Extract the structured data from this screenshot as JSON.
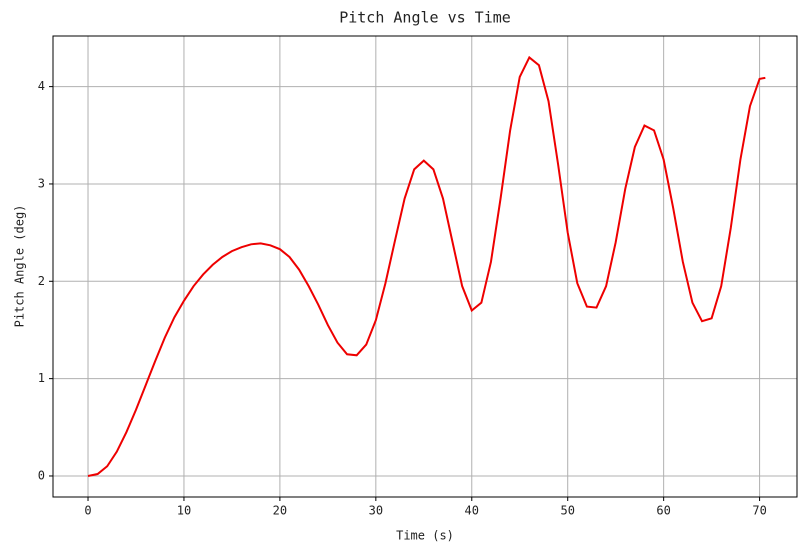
{
  "chart_data": {
    "type": "line",
    "title": "Pitch Angle vs Time",
    "xlabel": "Time (s)",
    "ylabel": "Pitch Angle (deg)",
    "grid": true,
    "xlim": [
      -3.65,
      73.9
    ],
    "ylim": [
      -0.216,
      4.52
    ],
    "xticks": [
      0,
      10,
      20,
      30,
      40,
      50,
      60,
      70
    ],
    "yticks": [
      0,
      1,
      2,
      3,
      4
    ],
    "series": [
      {
        "name": "Pitch Angle",
        "color": "#ee0000",
        "x": [
          0,
          1,
          2,
          3,
          4,
          5,
          6,
          7,
          8,
          9,
          10,
          11,
          12,
          13,
          14,
          15,
          16,
          17,
          18,
          19,
          20,
          21,
          22,
          23,
          24,
          25,
          26,
          27,
          28,
          29,
          30,
          31,
          32,
          33,
          34,
          35,
          36,
          37,
          38,
          39,
          40,
          41,
          42,
          43,
          44,
          45,
          46,
          47,
          48,
          49,
          50,
          51,
          52,
          53,
          54,
          55,
          56,
          57,
          58,
          59,
          60,
          61,
          62,
          63,
          64,
          65,
          66,
          67,
          68,
          69,
          70,
          70.6
        ],
        "values": [
          0,
          0.02,
          0.1,
          0.25,
          0.45,
          0.68,
          0.93,
          1.18,
          1.42,
          1.63,
          1.8,
          1.95,
          2.07,
          2.17,
          2.25,
          2.31,
          2.35,
          2.38,
          2.39,
          2.37,
          2.33,
          2.25,
          2.12,
          1.95,
          1.76,
          1.55,
          1.37,
          1.25,
          1.24,
          1.35,
          1.6,
          1.98,
          2.42,
          2.85,
          3.15,
          3.24,
          3.15,
          2.85,
          2.4,
          1.95,
          1.7,
          1.78,
          2.2,
          2.85,
          3.55,
          4.1,
          4.3,
          4.22,
          3.85,
          3.2,
          2.5,
          1.98,
          1.74,
          1.73,
          1.95,
          2.4,
          2.95,
          3.38,
          3.6,
          3.55,
          3.25,
          2.75,
          2.2,
          1.78,
          1.59,
          1.62,
          1.95,
          2.55,
          3.25,
          3.8,
          4.08,
          4.09
        ]
      }
    ]
  }
}
